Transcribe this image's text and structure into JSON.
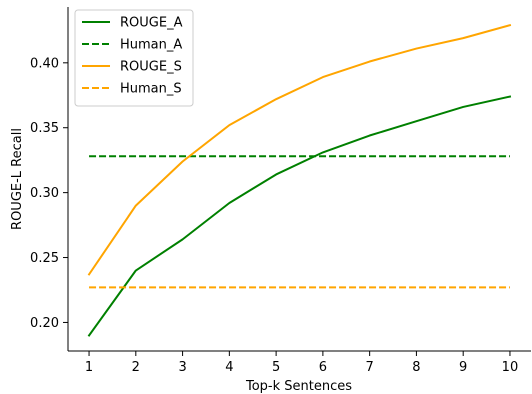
{
  "chart_data": {
    "type": "line",
    "xlabel": "Top-k Sentences",
    "ylabel": "ROUGE-L Recall",
    "x": [
      1,
      2,
      3,
      4,
      5,
      6,
      7,
      8,
      9,
      10
    ],
    "xticks": [
      "1",
      "2",
      "3",
      "4",
      "5",
      "6",
      "7",
      "8",
      "9",
      "10"
    ],
    "yticks": [
      "0.20",
      "0.25",
      "0.30",
      "0.35",
      "0.40"
    ],
    "ytick_values": [
      0.2,
      0.25,
      0.3,
      0.35,
      0.4
    ],
    "xlim": [
      0.55,
      10.45
    ],
    "ylim": [
      0.178,
      0.443
    ],
    "grid": false,
    "legend_position": "top-left",
    "series": [
      {
        "name": "ROUGE_A",
        "color": "#008000",
        "style": "solid",
        "values": [
          0.19,
          0.24,
          0.264,
          0.292,
          0.314,
          0.331,
          0.344,
          0.355,
          0.366,
          0.374
        ]
      },
      {
        "name": "Human_A",
        "color": "#008000",
        "style": "dashed",
        "values": [
          0.328,
          0.328,
          0.328,
          0.328,
          0.328,
          0.328,
          0.328,
          0.328,
          0.328,
          0.328
        ]
      },
      {
        "name": "ROUGE_S",
        "color": "#ffa500",
        "style": "solid",
        "values": [
          0.237,
          0.29,
          0.324,
          0.352,
          0.372,
          0.389,
          0.401,
          0.411,
          0.419,
          0.429
        ]
      },
      {
        "name": "Human_S",
        "color": "#ffa500",
        "style": "dashed",
        "values": [
          0.227,
          0.227,
          0.227,
          0.227,
          0.227,
          0.227,
          0.227,
          0.227,
          0.227,
          0.227
        ]
      }
    ]
  }
}
